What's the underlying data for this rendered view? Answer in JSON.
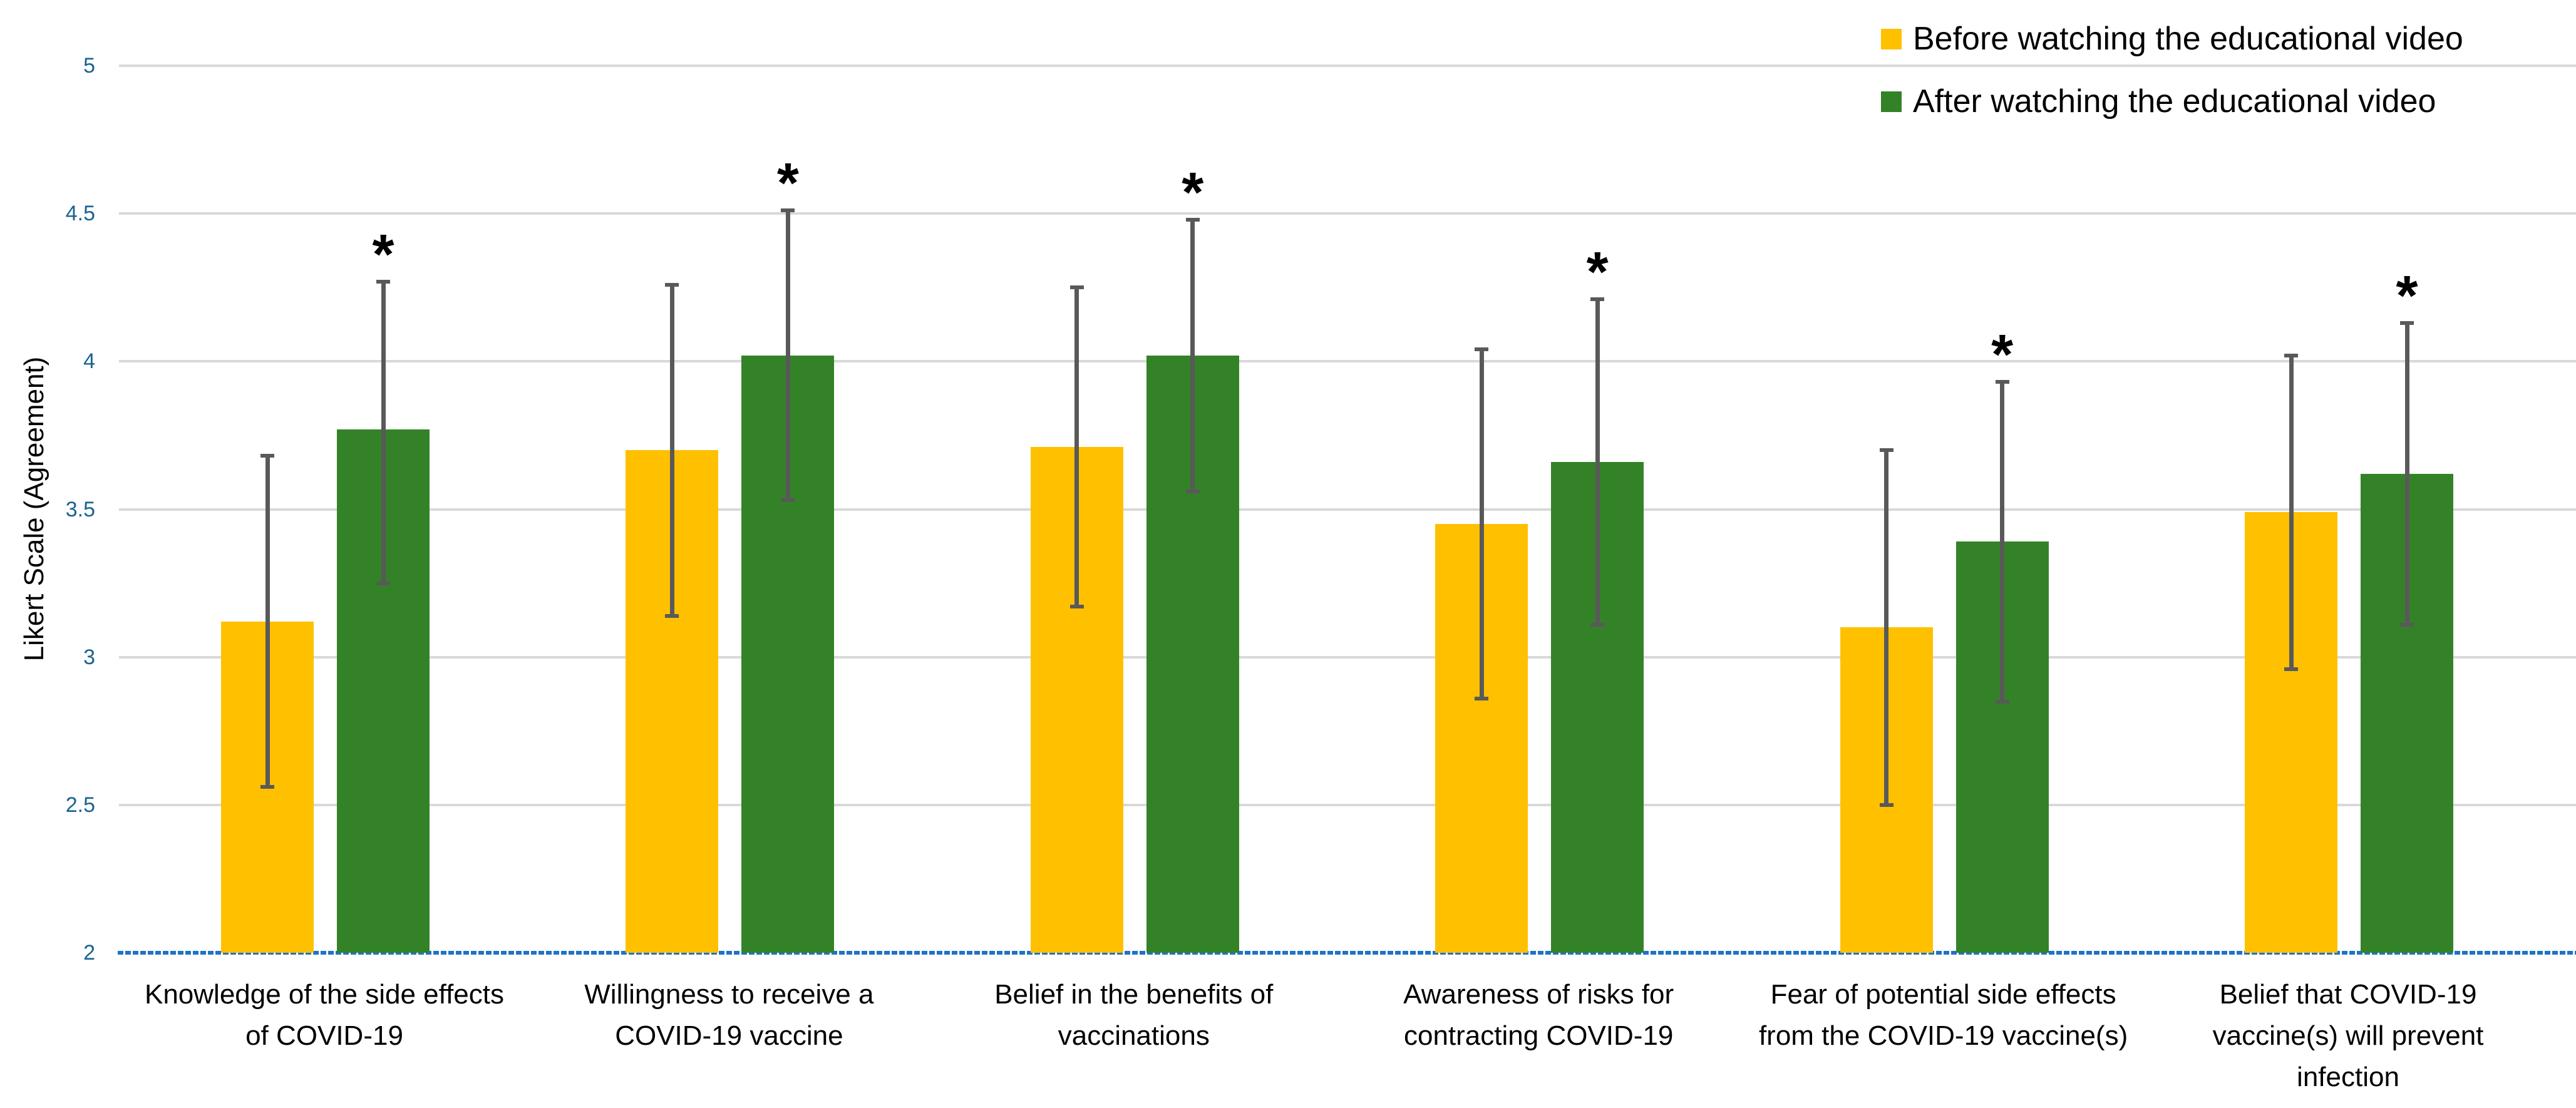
{
  "chart_data": {
    "type": "bar",
    "title": "",
    "ylabel": "Likert Scale (Agreement)",
    "ylim": [
      2,
      5
    ],
    "ytick_values": [
      2,
      2.5,
      3,
      3.5,
      4,
      4.5,
      5
    ],
    "ytick_labels": [
      "2",
      "2.5",
      "3",
      "3.5",
      "4",
      "4.5",
      "5"
    ],
    "grid": true,
    "legend_position": "top-right",
    "categories": [
      "Knowledge of the side effects of COVID-19",
      "Willingness to receive a COVID-19 vaccine",
      "Belief in the benefits of vaccinations",
      "Awareness of risks for contracting COVID-19",
      "Fear of potential side effects from the COVID-19 vaccine(s)",
      "Belief that COVID-19 vaccine(s) will prevent infection"
    ],
    "categories_lines": [
      [
        "Knowledge of the side effects",
        "of COVID-19"
      ],
      [
        "Willingness to receive a",
        "COVID-19 vaccine"
      ],
      [
        "Belief in the benefits of",
        "vaccinations"
      ],
      [
        "Awareness of risks for",
        "contracting COVID-19"
      ],
      [
        "Fear of potential side effects",
        "from the COVID-19 vaccine(s)"
      ],
      [
        "Belief that COVID-19",
        "vaccine(s) will prevent",
        "infection"
      ]
    ],
    "series": [
      {
        "name": "Before watching the educational video",
        "color": "#FFC000",
        "values": [
          3.12,
          3.7,
          3.71,
          3.45,
          3.1,
          3.49
        ],
        "error_low": [
          2.56,
          3.14,
          3.17,
          2.86,
          2.5,
          2.96
        ],
        "error_high": [
          3.68,
          4.26,
          4.25,
          4.04,
          3.7,
          4.02
        ]
      },
      {
        "name": "After watching the educational video",
        "color": "#348228",
        "values": [
          3.77,
          4.02,
          4.02,
          3.66,
          3.39,
          3.62
        ],
        "error_low": [
          3.25,
          3.53,
          3.56,
          3.11,
          2.85,
          3.11
        ],
        "error_high": [
          4.27,
          4.51,
          4.48,
          4.21,
          3.93,
          4.13
        ]
      }
    ],
    "significance": {
      "marker": "*",
      "applies_to_series": "After watching the educational video",
      "categories_marked": [
        true,
        true,
        true,
        true,
        true,
        true
      ]
    },
    "colors": {
      "gridline": "#D9D9D9",
      "axis_line": "#1E73C6",
      "tick_label": "#1B6390",
      "error_bar": "#595959",
      "text": "#000000",
      "background": "#FFFFFF"
    }
  }
}
